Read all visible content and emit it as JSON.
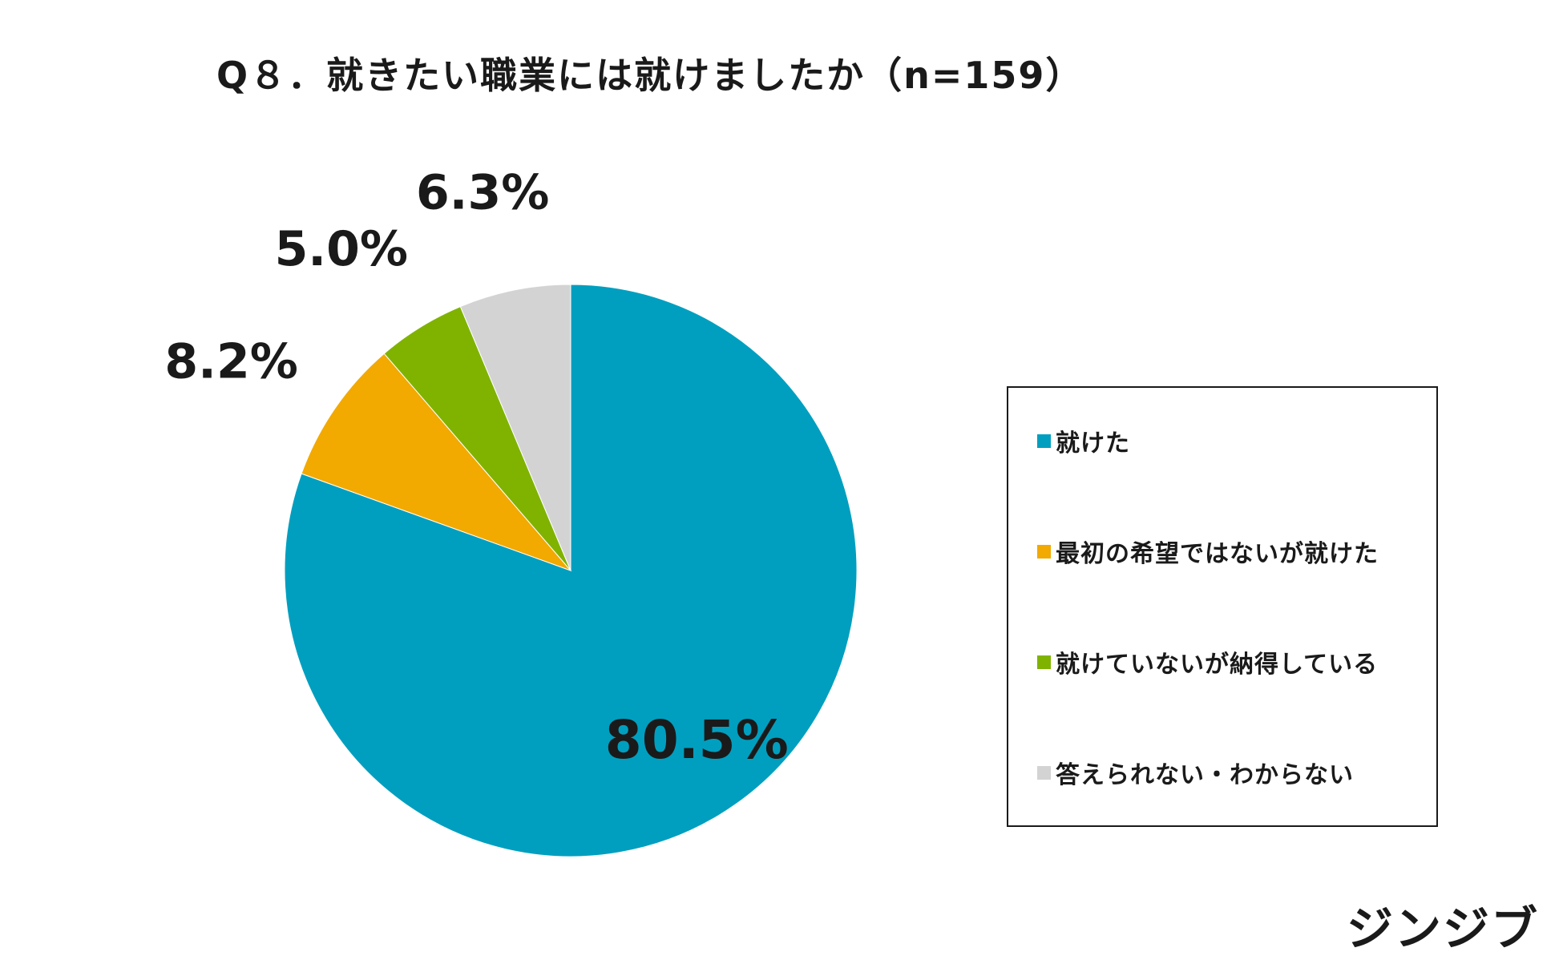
{
  "title": "Q８．就きたい職業には就けましたか（n=159）",
  "brand": "ジンジブ",
  "chart_data": {
    "type": "pie",
    "title": "Q８．就きたい職業には就けましたか（n=159）",
    "categories": [
      "就けた",
      "最初の希望ではないが就けた",
      "就けていないが納得している",
      "答えられない・わからない"
    ],
    "values": [
      80.5,
      8.2,
      5.0,
      6.3
    ],
    "labels": [
      "80.5%",
      "8.2%",
      "5.0%",
      "6.3%"
    ],
    "colors": [
      "#009FBF",
      "#F2A900",
      "#7FB300",
      "#D3D3D3"
    ],
    "start": "12 o'clock",
    "direction": "clockwise",
    "legend_position": "right"
  }
}
